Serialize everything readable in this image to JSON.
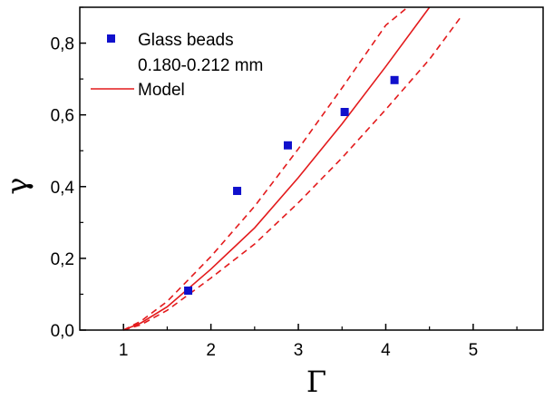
{
  "chart_data": {
    "type": "scatter",
    "xlabel": "Γ",
    "ylabel": "γ",
    "xlim": [
      0.5,
      5.8
    ],
    "ylim": [
      0.0,
      0.9
    ],
    "grid": false,
    "legend_position": "top-left",
    "x_ticks": [
      1,
      2,
      3,
      4,
      5
    ],
    "x_tick_labels": [
      "1",
      "2",
      "3",
      "4",
      "5"
    ],
    "y_ticks": [
      0.0,
      0.2,
      0.4,
      0.6,
      0.8
    ],
    "y_tick_labels": [
      "0,0",
      "0,2",
      "0,4",
      "0,6",
      "0,8"
    ],
    "legend": {
      "scatter_line1": "Glass beads",
      "scatter_line2": "0.180-0.212 mm",
      "model_label": "Model"
    },
    "series": [
      {
        "name": "Glass beads 0.180-0.212 mm",
        "kind": "scatter",
        "color": "#1010cc",
        "x": [
          1.74,
          2.3,
          2.88,
          3.53,
          4.1
        ],
        "y": [
          0.11,
          0.388,
          0.515,
          0.608,
          0.697
        ]
      },
      {
        "name": "Model",
        "kind": "line",
        "style": "solid",
        "color": "#e31a1c",
        "x": [
          1.0,
          1.2,
          1.5,
          2.0,
          2.5,
          3.0,
          3.5,
          4.0,
          4.5
        ],
        "y": [
          0.0,
          0.02,
          0.065,
          0.17,
          0.285,
          0.425,
          0.575,
          0.735,
          0.9
        ]
      },
      {
        "name": "",
        "kind": "line",
        "style": "dashed",
        "color": "#e31a1c",
        "x": [
          1.0,
          1.2,
          1.5,
          2.0,
          2.5,
          3.0,
          3.5,
          4.0,
          4.25
        ],
        "y": [
          0.0,
          0.025,
          0.08,
          0.205,
          0.345,
          0.505,
          0.675,
          0.85,
          0.9
        ]
      },
      {
        "name": "",
        "kind": "line",
        "style": "dashed",
        "color": "#e31a1c",
        "x": [
          1.0,
          1.2,
          1.5,
          2.0,
          2.5,
          3.0,
          3.5,
          4.0,
          4.5,
          4.85
        ],
        "y": [
          0.0,
          0.015,
          0.055,
          0.145,
          0.24,
          0.355,
          0.48,
          0.615,
          0.755,
          0.87
        ]
      }
    ]
  }
}
